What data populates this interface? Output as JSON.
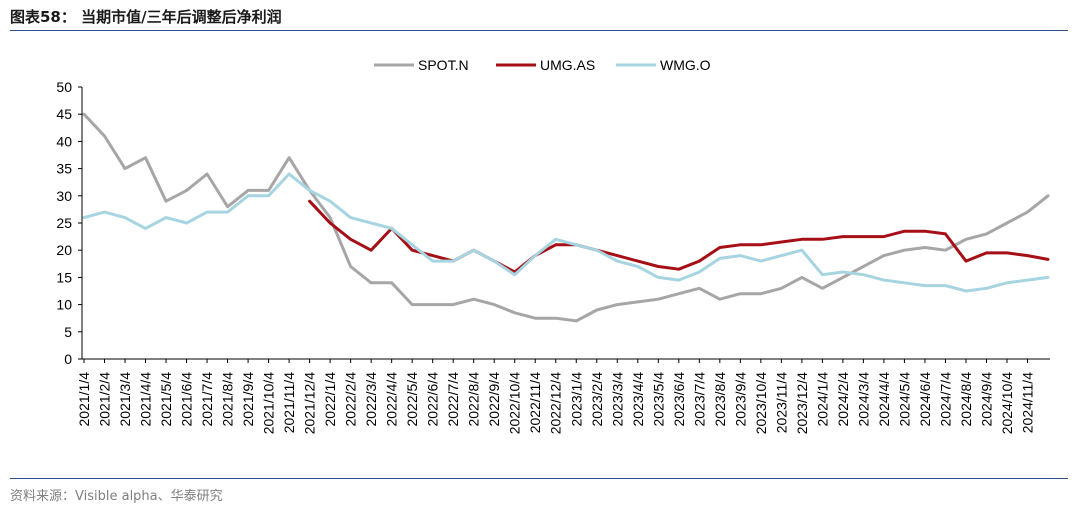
{
  "header": {
    "title": "图表58：   当期市值/三年后调整后净利润"
  },
  "footer": {
    "source": "资料来源：Visible alpha、华泰研究"
  },
  "chart_data": {
    "type": "line",
    "ylim": [
      0,
      50
    ],
    "yticks": [
      0,
      5,
      10,
      15,
      20,
      25,
      30,
      35,
      40,
      45,
      50
    ],
    "xtick_labels": [
      "2021/1/4",
      "2021/2/4",
      "2021/3/4",
      "2021/4/4",
      "2021/5/4",
      "2021/6/4",
      "2021/7/4",
      "2021/8/4",
      "2021/9/4",
      "2021/10/4",
      "2021/11/4",
      "2021/12/4",
      "2022/1/4",
      "2022/2/4",
      "2022/3/4",
      "2022/4/4",
      "2022/5/4",
      "2022/6/4",
      "2022/7/4",
      "2022/8/4",
      "2022/9/4",
      "2022/10/4",
      "2022/11/4",
      "2022/12/4",
      "2023/1/4",
      "2023/2/4",
      "2023/3/4",
      "2023/4/4",
      "2023/5/4",
      "2023/6/4",
      "2023/7/4",
      "2023/8/4",
      "2023/9/4",
      "2023/10/4",
      "2023/11/4",
      "2023/12/4",
      "2024/1/4",
      "2024/2/4",
      "2024/3/4",
      "2024/4/4",
      "2024/5/4",
      "2024/6/4",
      "2024/7/4",
      "2024/8/4",
      "2024/9/4",
      "2024/10/4",
      "2024/11/4"
    ],
    "x": [
      "2021/1/4",
      "2021/2/4",
      "2021/3/4",
      "2021/4/4",
      "2021/5/4",
      "2021/6/4",
      "2021/7/4",
      "2021/8/4",
      "2021/9/4",
      "2021/10/4",
      "2021/11/4",
      "2021/12/4",
      "2022/1/4",
      "2022/2/4",
      "2022/3/4",
      "2022/4/4",
      "2022/5/4",
      "2022/6/4",
      "2022/7/4",
      "2022/8/4",
      "2022/9/4",
      "2022/10/4",
      "2022/11/4",
      "2022/12/4",
      "2023/1/4",
      "2023/2/4",
      "2023/3/4",
      "2023/4/4",
      "2023/5/4",
      "2023/6/4",
      "2023/7/4",
      "2023/8/4",
      "2023/9/4",
      "2023/10/4",
      "2023/11/4",
      "2023/12/4",
      "2024/1/4",
      "2024/2/4",
      "2024/3/4",
      "2024/4/4",
      "2024/5/4",
      "2024/6/4",
      "2024/7/4",
      "2024/8/4",
      "2024/9/4",
      "2024/10/4",
      "2024/11/4",
      "2024/11/29"
    ],
    "series": [
      {
        "name": "SPOT.N",
        "color": "#a6a6a6",
        "values": [
          45,
          41,
          35,
          37,
          29,
          31,
          34,
          28,
          31,
          31,
          37,
          31,
          26,
          17,
          14,
          14,
          10,
          10,
          10,
          11,
          10,
          8.5,
          7.5,
          7.5,
          7,
          9,
          10,
          10.5,
          11,
          12,
          13,
          11,
          12,
          12,
          13,
          15,
          13,
          15,
          17,
          19,
          20,
          20.5,
          20,
          22,
          23,
          25,
          27,
          30
        ]
      },
      {
        "name": "UMG.AS",
        "color": "#a50f15",
        "values": [
          null,
          null,
          null,
          null,
          null,
          null,
          null,
          null,
          null,
          null,
          null,
          29,
          25,
          22,
          20,
          24,
          20,
          19,
          18,
          20,
          18,
          16,
          19,
          21,
          21,
          20,
          19,
          18,
          17,
          16.5,
          18,
          20.5,
          21,
          21,
          21.5,
          22,
          22,
          22.5,
          22.5,
          22.5,
          23.5,
          23.5,
          23,
          18,
          19.5,
          19.5,
          19,
          18.3
        ]
      },
      {
        "name": "WMG.O",
        "color": "#a6d4e1",
        "values": [
          26,
          27,
          26,
          24,
          26,
          25,
          27,
          27,
          30,
          30,
          34,
          31,
          29,
          26,
          25,
          24,
          21,
          18,
          18,
          20,
          18,
          15.5,
          19,
          22,
          21,
          20,
          18,
          17,
          15,
          14.5,
          16,
          18.5,
          19,
          18,
          19,
          20,
          15.5,
          16,
          15.5,
          14.5,
          14,
          13.5,
          13.5,
          12.5,
          13,
          14,
          14.5,
          15
        ]
      }
    ],
    "legend": "top-center",
    "grid": false
  }
}
